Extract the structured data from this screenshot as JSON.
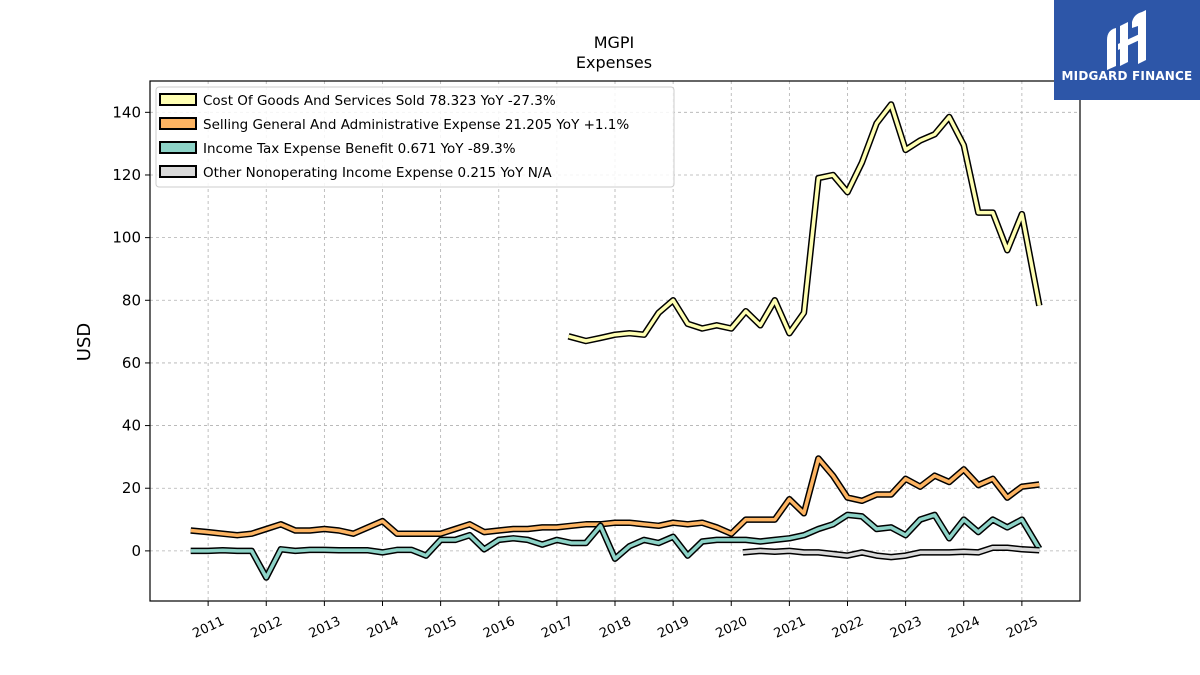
{
  "logo": {
    "text": "MIDGARD FINANCE",
    "background": "#2d56a8"
  },
  "chart_data": {
    "type": "line",
    "title": "MGPI",
    "subtitle": "Expenses",
    "xlabel": "",
    "ylabel": "USD",
    "ylim": [
      -16,
      150
    ],
    "xlim": [
      2010.0,
      2026.0
    ],
    "yticks": [
      0,
      20,
      40,
      60,
      80,
      100,
      120,
      140
    ],
    "xticks": [
      "2011",
      "2012",
      "2013",
      "2014",
      "2015",
      "2016",
      "2017",
      "2018",
      "2019",
      "2020",
      "2021",
      "2022",
      "2023",
      "2024",
      "2025"
    ],
    "grid": true,
    "legend_position": "top-left",
    "series": [
      {
        "name": "Cost Of Goods And Services Sold  78.323 YoY -27.3%",
        "color": "#ffffb3",
        "x": [
          2017.2,
          2017.5,
          2017.75,
          2018.0,
          2018.25,
          2018.5,
          2018.75,
          2019.0,
          2019.25,
          2019.5,
          2019.75,
          2020.0,
          2020.25,
          2020.5,
          2020.75,
          2021.0,
          2021.25,
          2021.5,
          2021.75,
          2022.0,
          2022.25,
          2022.5,
          2022.75,
          2023.0,
          2023.25,
          2023.5,
          2023.75,
          2024.0,
          2024.25,
          2024.5,
          2024.75,
          2025.0,
          2025.3
        ],
        "values": [
          68.5,
          67.0,
          68.0,
          69.0,
          69.5,
          69.0,
          76.0,
          80.0,
          72.5,
          71.0,
          72.0,
          71.0,
          76.5,
          72.0,
          80.0,
          69.5,
          76.0,
          119.0,
          120.0,
          114.5,
          124.0,
          136.5,
          142.5,
          128.0,
          131.0,
          133.0,
          138.5,
          129.5,
          108.0,
          108.0,
          96.0,
          107.5,
          78.3
        ]
      },
      {
        "name": "Selling General And Administrative Expense  21.205 YoY +1.1%",
        "color": "#fdb462",
        "x": [
          2010.7,
          2011.0,
          2011.25,
          2011.5,
          2011.75,
          2012.0,
          2012.25,
          2012.5,
          2012.75,
          2013.0,
          2013.25,
          2013.5,
          2013.75,
          2014.0,
          2014.25,
          2014.5,
          2014.75,
          2015.0,
          2015.25,
          2015.5,
          2015.75,
          2016.0,
          2016.25,
          2016.5,
          2016.75,
          2017.0,
          2017.25,
          2017.5,
          2017.75,
          2018.0,
          2018.25,
          2018.5,
          2018.75,
          2019.0,
          2019.25,
          2019.5,
          2019.75,
          2020.0,
          2020.25,
          2020.5,
          2020.75,
          2021.0,
          2021.25,
          2021.5,
          2021.75,
          2022.0,
          2022.25,
          2022.5,
          2022.75,
          2023.0,
          2023.25,
          2023.5,
          2023.75,
          2024.0,
          2024.25,
          2024.5,
          2024.75,
          2025.0,
          2025.3
        ],
        "values": [
          6.5,
          6.0,
          5.5,
          5.0,
          5.5,
          7.0,
          8.5,
          6.5,
          6.5,
          7.0,
          6.5,
          5.5,
          7.5,
          9.5,
          5.5,
          5.5,
          5.5,
          5.5,
          7.0,
          8.5,
          6.0,
          6.5,
          7.0,
          7.0,
          7.5,
          7.5,
          8.0,
          8.5,
          8.5,
          9.0,
          9.0,
          8.5,
          8.0,
          9.0,
          8.5,
          9.0,
          7.5,
          5.5,
          10.0,
          10.0,
          10.0,
          16.5,
          12.0,
          29.5,
          24.0,
          17.0,
          16.0,
          18.0,
          18.0,
          23.0,
          20.5,
          24.0,
          22.0,
          26.0,
          21.0,
          23.0,
          17.0,
          20.5,
          21.2
        ]
      },
      {
        "name": "Income Tax Expense Benefit  0.671 YoY -89.3%",
        "color": "#8dd3c7",
        "x": [
          2010.7,
          2011.0,
          2011.25,
          2011.5,
          2011.75,
          2012.0,
          2012.25,
          2012.5,
          2012.75,
          2013.0,
          2013.25,
          2013.5,
          2013.75,
          2014.0,
          2014.25,
          2014.5,
          2014.75,
          2015.0,
          2015.25,
          2015.5,
          2015.75,
          2016.0,
          2016.25,
          2016.5,
          2016.75,
          2017.0,
          2017.25,
          2017.5,
          2017.75,
          2018.0,
          2018.25,
          2018.5,
          2018.75,
          2019.0,
          2019.25,
          2019.5,
          2019.75,
          2020.0,
          2020.25,
          2020.5,
          2020.75,
          2021.0,
          2021.25,
          2021.5,
          2021.75,
          2022.0,
          2022.25,
          2022.5,
          2022.75,
          2023.0,
          2023.25,
          2023.5,
          2023.75,
          2024.0,
          2024.25,
          2024.5,
          2024.75,
          2025.0,
          2025.3
        ],
        "values": [
          0.0,
          0.0,
          0.2,
          0.0,
          0.0,
          -8.5,
          0.5,
          0.0,
          0.3,
          0.3,
          0.2,
          0.2,
          0.2,
          -0.5,
          0.3,
          0.3,
          -1.5,
          3.5,
          3.5,
          5.0,
          0.5,
          3.5,
          4.0,
          3.5,
          2.0,
          3.5,
          2.5,
          2.5,
          8.0,
          -2.5,
          1.5,
          3.5,
          2.5,
          4.5,
          -1.5,
          3.0,
          3.5,
          3.5,
          3.5,
          3.0,
          3.5,
          4.0,
          5.0,
          7.0,
          8.5,
          11.5,
          11.0,
          7.0,
          7.5,
          5.0,
          10.0,
          11.5,
          4.0,
          10.0,
          6.0,
          10.0,
          7.5,
          10.0,
          0.7
        ]
      },
      {
        "name": "Other Nonoperating Income Expense  0.215 YoY N/A",
        "color": "#d9d9d9",
        "x": [
          2020.2,
          2020.5,
          2020.75,
          2021.0,
          2021.25,
          2021.5,
          2021.75,
          2022.0,
          2022.25,
          2022.5,
          2022.75,
          2023.0,
          2023.25,
          2023.5,
          2023.75,
          2024.0,
          2024.25,
          2024.5,
          2024.75,
          2025.0,
          2025.3
        ],
        "values": [
          -0.5,
          0.0,
          -0.3,
          0.0,
          -0.5,
          -0.5,
          -1.0,
          -1.5,
          -0.5,
          -1.5,
          -2.0,
          -1.5,
          -0.5,
          -0.5,
          -0.5,
          -0.3,
          -0.5,
          1.0,
          1.0,
          0.5,
          0.2
        ]
      }
    ]
  }
}
